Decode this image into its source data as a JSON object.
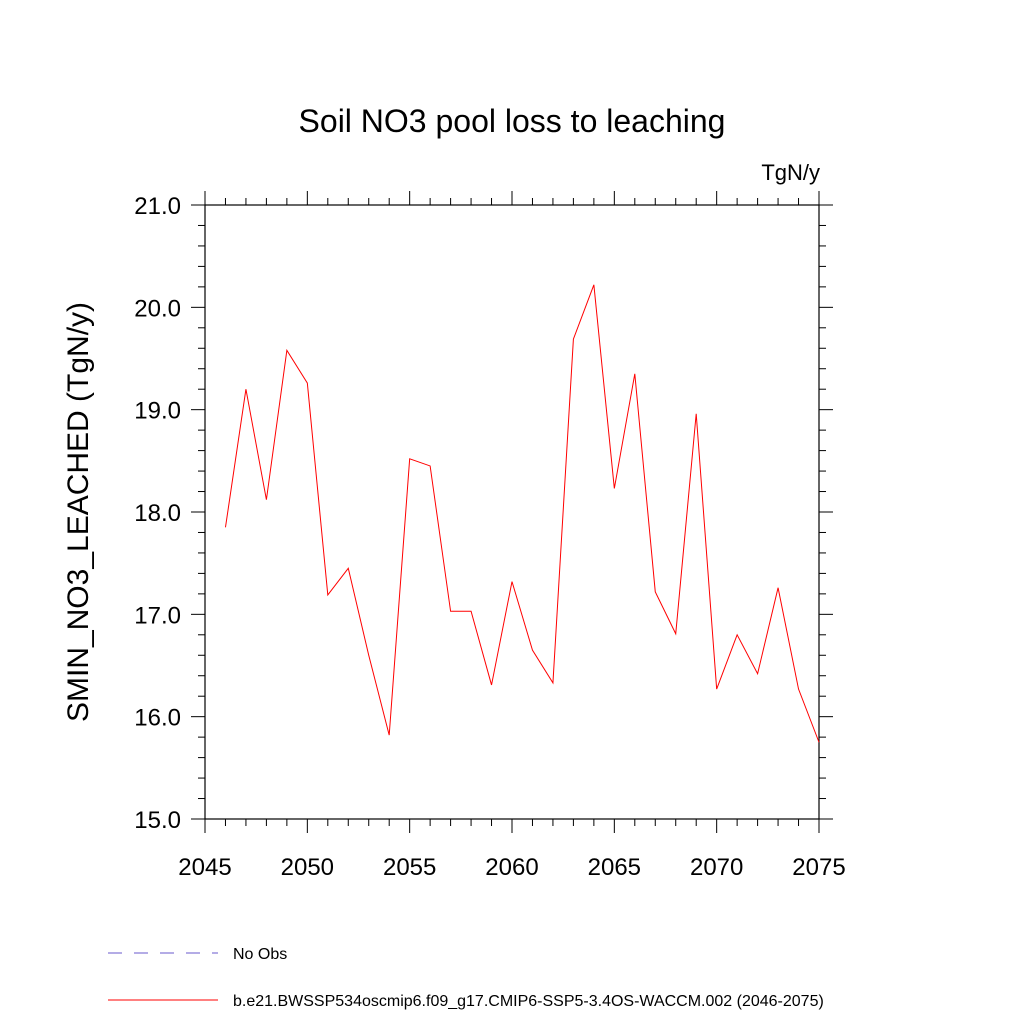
{
  "chart_data": {
    "type": "line",
    "title": "Soil NO3 pool loss to leaching",
    "units": "TgN/y",
    "xlabel": "",
    "ylabel": "SMIN_NO3_LEACHED  (TgN/y)",
    "xlim": [
      2045,
      2075
    ],
    "ylim": [
      15.0,
      21.0
    ],
    "x_ticks": [
      2045,
      2050,
      2055,
      2060,
      2065,
      2070,
      2075
    ],
    "x_tick_labels": [
      "2045",
      "2050",
      "2055",
      "2060",
      "2065",
      "2070",
      "2075"
    ],
    "y_ticks": [
      15.0,
      16.0,
      17.0,
      18.0,
      19.0,
      20.0,
      21.0
    ],
    "y_tick_labels": [
      "15.0",
      "16.0",
      "17.0",
      "18.0",
      "19.0",
      "20.0",
      "21.0"
    ],
    "grid": false,
    "legend_position": "bottom",
    "series": [
      {
        "name": "b.e21.BWSSP534oscmip6.f09_g17.CMIP6-SSP5-3.4OS-WACCM.002 (2046-2075)",
        "color": "#ff0000",
        "dash": "solid",
        "x": [
          2046,
          2047,
          2048,
          2049,
          2050,
          2051,
          2052,
          2053,
          2054,
          2055,
          2056,
          2057,
          2058,
          2059,
          2060,
          2061,
          2062,
          2063,
          2064,
          2065,
          2066,
          2067,
          2068,
          2069,
          2070,
          2071,
          2072,
          2073,
          2074,
          2075
        ],
        "values": [
          17.85,
          19.2,
          18.12,
          19.58,
          19.26,
          17.19,
          17.45,
          16.6,
          15.82,
          18.52,
          18.45,
          17.03,
          17.03,
          16.31,
          17.32,
          16.65,
          16.33,
          19.69,
          20.22,
          18.23,
          19.35,
          17.22,
          16.81,
          18.96,
          16.27,
          16.8,
          16.42,
          17.26,
          16.27,
          15.75
        ]
      },
      {
        "name": "No Obs",
        "color": "#6a5acd",
        "dash": "dashed",
        "x": [],
        "values": []
      }
    ]
  }
}
